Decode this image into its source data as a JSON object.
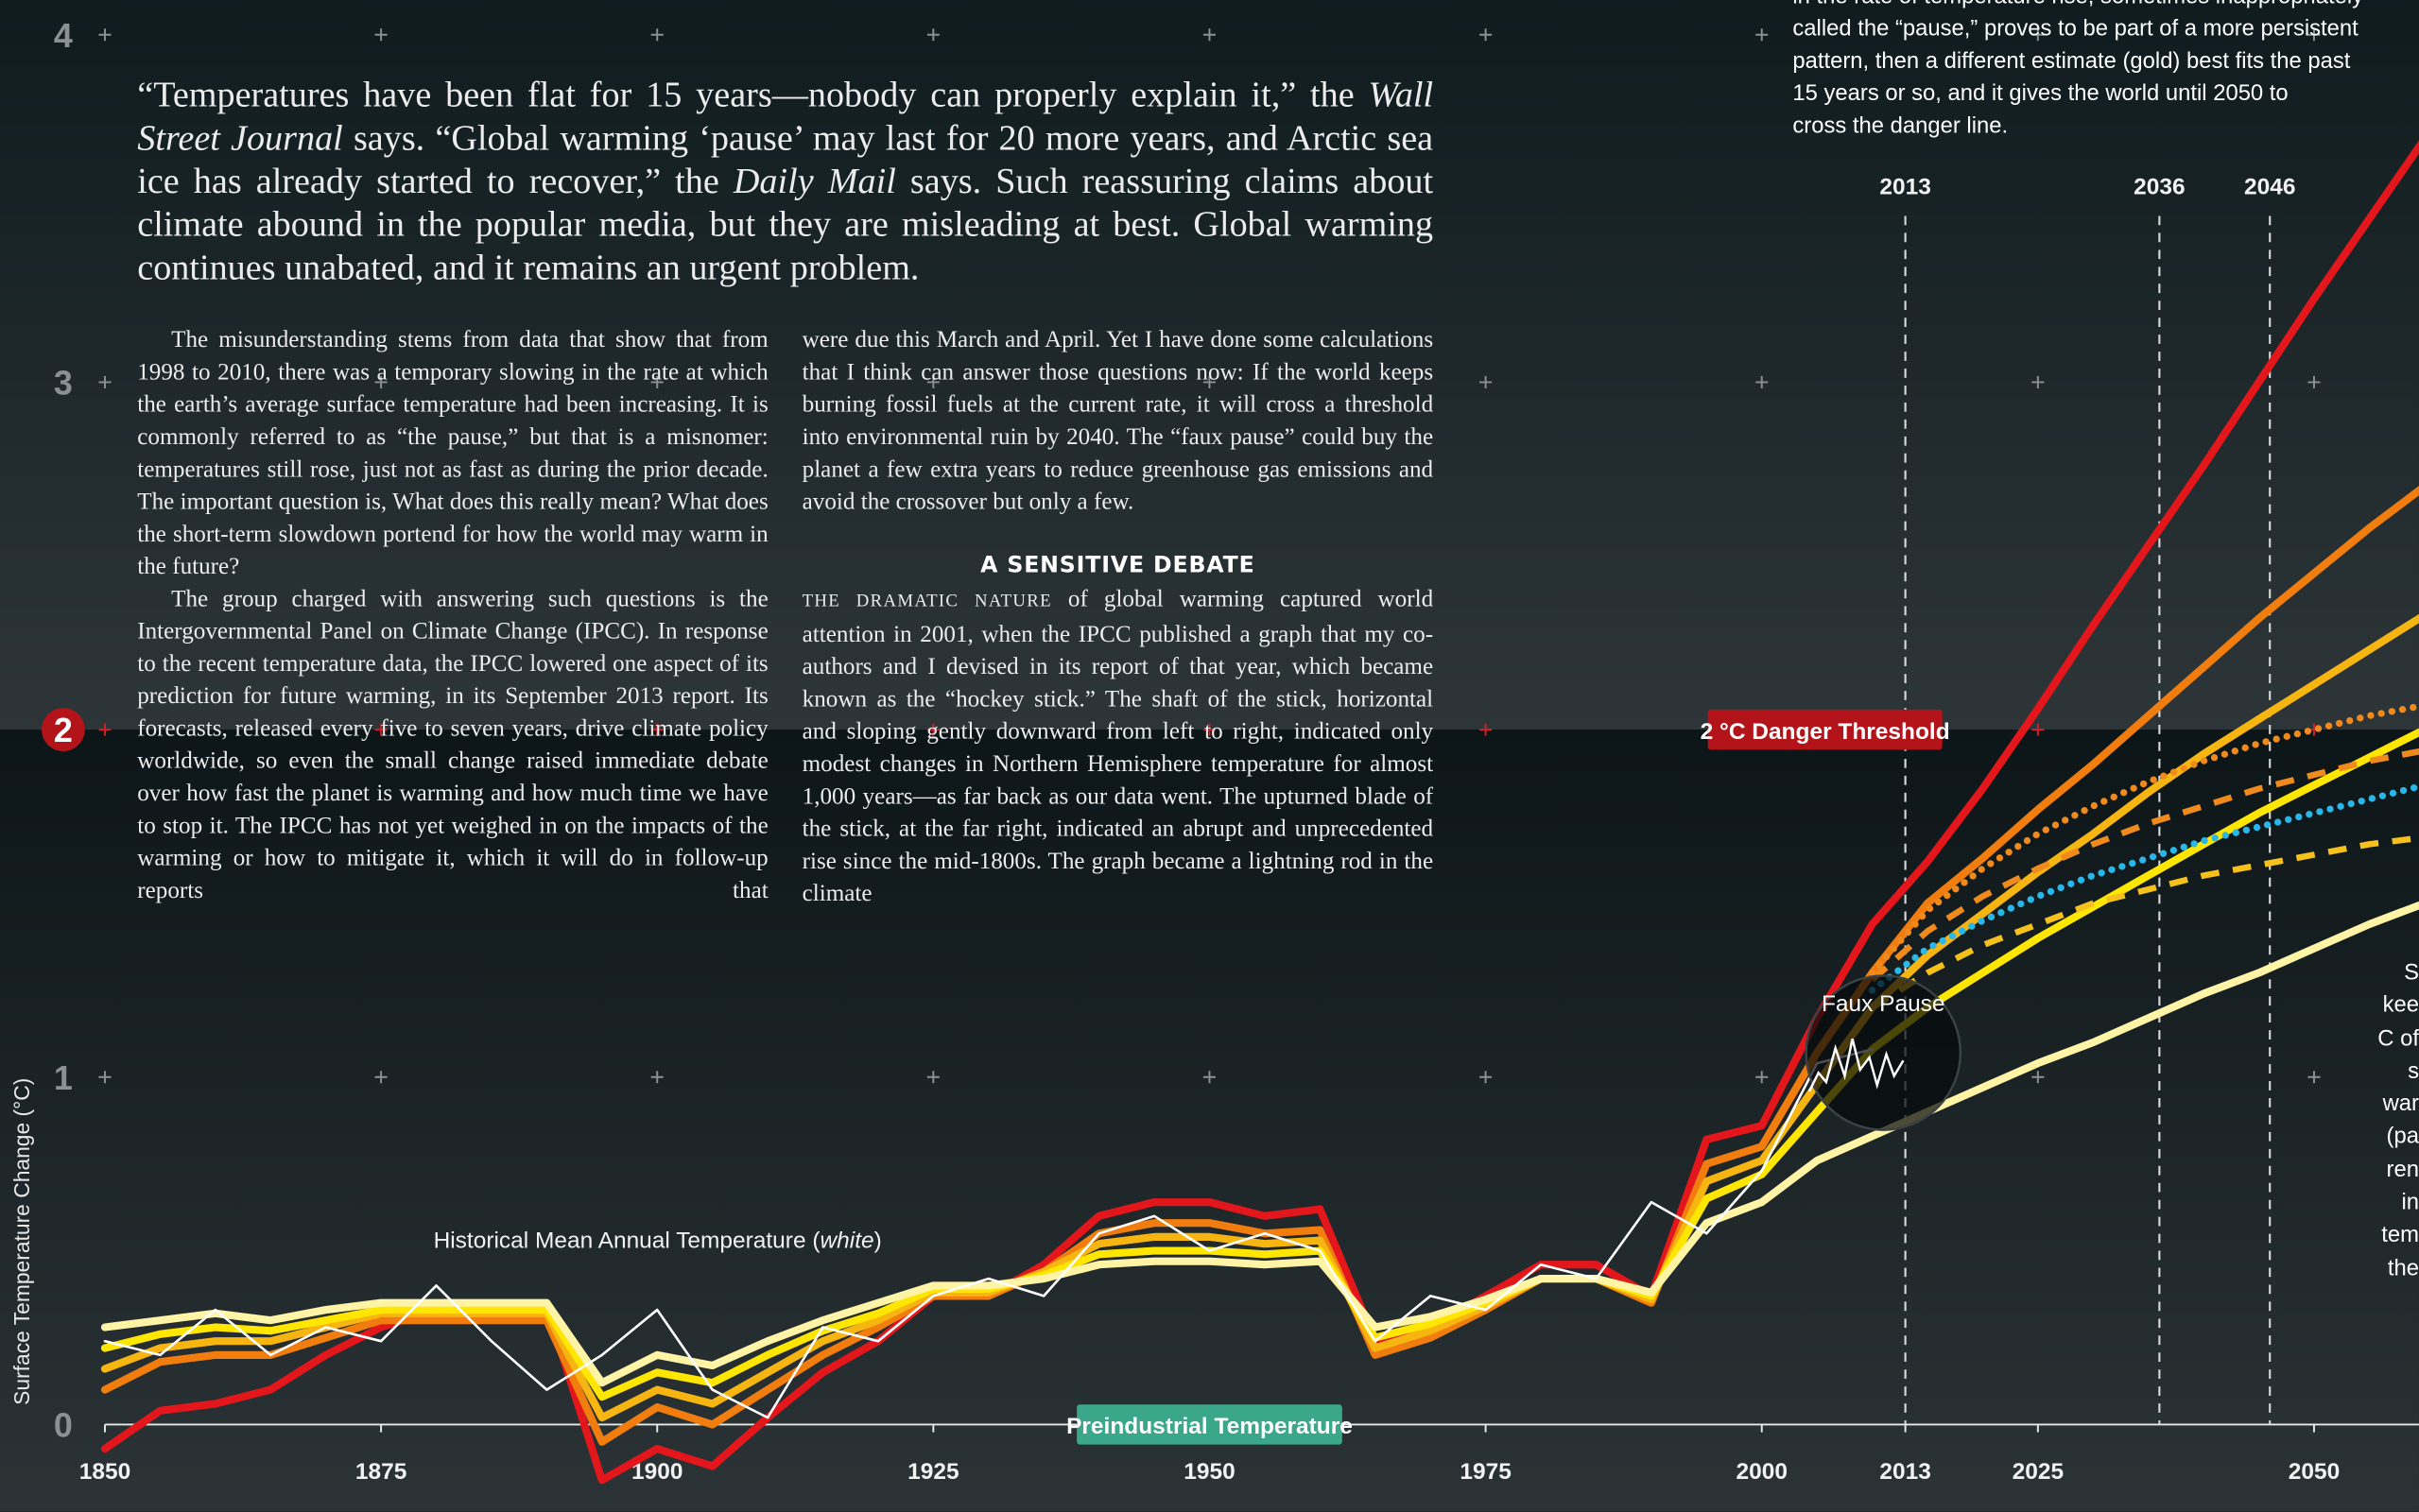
{
  "chart_data": {
    "type": "line",
    "y_label": "Surface Temperature Change (°C)",
    "x": [
      1850,
      1855,
      1860,
      1865,
      1870,
      1875,
      1880,
      1885,
      1890,
      1895,
      1900,
      1905,
      1910,
      1915,
      1920,
      1925,
      1930,
      1935,
      1940,
      1945,
      1950,
      1955,
      1960,
      1965,
      1970,
      1975,
      1980,
      1985,
      1990,
      1995,
      2000,
      2005,
      2010,
      2015,
      2020,
      2025,
      2030,
      2035,
      2040,
      2045,
      2050,
      2055,
      2060
    ],
    "xlim": [
      1850,
      2059.5
    ],
    "xticks": [
      1850,
      1875,
      1900,
      1925,
      1950,
      1975,
      2000,
      2013,
      2025,
      2050
    ],
    "ylim": [
      -0.25,
      4.1
    ],
    "yticks": [
      0,
      1,
      2,
      3,
      4
    ],
    "grid": "plus",
    "xmarkers": [
      2013,
      2036,
      2046
    ],
    "threshold": {
      "value": 2,
      "label": "2 °C Danger Threshold"
    },
    "baseline": {
      "value": 0,
      "label": "Preindustrial Temperature"
    },
    "callout": {
      "label": "Faux Pause",
      "x": 2011,
      "y": 1.07
    },
    "series": [
      {
        "color": "#e3171b",
        "style": "solid",
        "values": [
          -0.07,
          0.04,
          0.06,
          0.1,
          0.2,
          0.28,
          0.33,
          0.34,
          0.34,
          -0.16,
          -0.07,
          -0.12,
          0.02,
          0.15,
          0.24,
          0.37,
          0.37,
          0.46,
          0.6,
          0.64,
          0.64,
          0.6,
          0.62,
          0.24,
          0.28,
          0.37,
          0.46,
          0.46,
          0.37,
          0.82,
          0.86,
          1.17,
          1.44,
          1.62,
          1.83,
          2.06,
          2.3,
          2.53,
          2.76,
          3.0,
          3.24,
          3.47,
          3.7
        ]
      },
      {
        "color": "#f07d0e",
        "style": "solid",
        "values": [
          0.1,
          0.18,
          0.2,
          0.2,
          0.25,
          0.3,
          0.3,
          0.3,
          0.3,
          -0.05,
          0.05,
          0.0,
          0.1,
          0.2,
          0.28,
          0.37,
          0.37,
          0.44,
          0.55,
          0.58,
          0.58,
          0.55,
          0.56,
          0.2,
          0.25,
          0.33,
          0.42,
          0.42,
          0.35,
          0.75,
          0.8,
          1.07,
          1.3,
          1.5,
          1.63,
          1.77,
          1.9,
          2.04,
          2.18,
          2.32,
          2.45,
          2.58,
          2.7
        ]
      },
      {
        "color": "#f6b510",
        "style": "solid",
        "values": [
          0.16,
          0.22,
          0.24,
          0.24,
          0.28,
          0.32,
          0.32,
          0.32,
          0.32,
          0.02,
          0.1,
          0.06,
          0.15,
          0.24,
          0.3,
          0.38,
          0.38,
          0.44,
          0.52,
          0.54,
          0.54,
          0.52,
          0.53,
          0.22,
          0.27,
          0.34,
          0.42,
          0.42,
          0.36,
          0.7,
          0.76,
          0.98,
          1.2,
          1.35,
          1.47,
          1.59,
          1.7,
          1.82,
          1.93,
          2.03,
          2.13,
          2.23,
          2.33
        ]
      },
      {
        "color": "#ffe600",
        "style": "solid",
        "values": [
          0.22,
          0.26,
          0.28,
          0.27,
          0.3,
          0.33,
          0.33,
          0.33,
          0.33,
          0.08,
          0.15,
          0.12,
          0.2,
          0.27,
          0.32,
          0.39,
          0.39,
          0.43,
          0.49,
          0.5,
          0.5,
          0.49,
          0.5,
          0.25,
          0.29,
          0.35,
          0.42,
          0.42,
          0.37,
          0.65,
          0.72,
          0.9,
          1.08,
          1.2,
          1.3,
          1.4,
          1.49,
          1.58,
          1.67,
          1.76,
          1.84,
          1.92,
          2.0
        ]
      },
      {
        "color": "#fff3a6",
        "style": "solid",
        "values": [
          0.28,
          0.3,
          0.32,
          0.3,
          0.33,
          0.35,
          0.35,
          0.35,
          0.35,
          0.12,
          0.2,
          0.17,
          0.24,
          0.3,
          0.35,
          0.4,
          0.4,
          0.42,
          0.46,
          0.47,
          0.47,
          0.46,
          0.47,
          0.28,
          0.31,
          0.36,
          0.42,
          0.42,
          0.38,
          0.58,
          0.64,
          0.76,
          0.83,
          0.9,
          0.97,
          1.04,
          1.1,
          1.17,
          1.24,
          1.3,
          1.37,
          1.44,
          1.5
        ]
      },
      {
        "color": "#29b6e8",
        "style": "dotted",
        "values": [
          null,
          null,
          null,
          null,
          null,
          null,
          null,
          null,
          null,
          null,
          null,
          null,
          null,
          null,
          null,
          null,
          null,
          null,
          null,
          null,
          null,
          null,
          null,
          null,
          null,
          null,
          null,
          null,
          null,
          null,
          null,
          null,
          1.25,
          1.37,
          1.45,
          1.52,
          1.58,
          1.63,
          1.68,
          1.72,
          1.76,
          1.8,
          1.84
        ]
      },
      {
        "color": "#f08a1c",
        "style": "dotted",
        "values": [
          null,
          null,
          null,
          null,
          null,
          null,
          null,
          null,
          null,
          null,
          null,
          null,
          null,
          null,
          null,
          null,
          null,
          null,
          null,
          null,
          null,
          null,
          null,
          null,
          null,
          null,
          null,
          null,
          null,
          null,
          null,
          null,
          1.3,
          1.48,
          1.6,
          1.7,
          1.78,
          1.85,
          1.91,
          1.96,
          2.0,
          2.04,
          2.07
        ]
      },
      {
        "color": "#f08a1c",
        "style": "dashed",
        "values": [
          null,
          null,
          null,
          null,
          null,
          null,
          null,
          null,
          null,
          null,
          null,
          null,
          null,
          null,
          null,
          null,
          null,
          null,
          null,
          null,
          null,
          null,
          null,
          null,
          null,
          null,
          null,
          null,
          null,
          null,
          null,
          null,
          1.28,
          1.42,
          1.52,
          1.6,
          1.67,
          1.73,
          1.78,
          1.83,
          1.87,
          1.91,
          1.94
        ]
      },
      {
        "color": "#f6c11a",
        "style": "dashed",
        "values": [
          null,
          null,
          null,
          null,
          null,
          null,
          null,
          null,
          null,
          null,
          null,
          null,
          null,
          null,
          null,
          null,
          null,
          null,
          null,
          null,
          null,
          null,
          null,
          null,
          null,
          null,
          null,
          null,
          null,
          null,
          null,
          null,
          1.2,
          1.3,
          1.38,
          1.44,
          1.5,
          1.54,
          1.58,
          1.61,
          1.64,
          1.67,
          1.69
        ]
      },
      {
        "name": "Historical Mean Annual Temperature",
        "name_note": "white",
        "color": "#ffffff",
        "style": "thin",
        "values": [
          0.24,
          0.2,
          0.33,
          0.2,
          0.28,
          0.24,
          0.4,
          0.24,
          0.1,
          0.2,
          0.33,
          0.1,
          0.02,
          0.28,
          0.24,
          0.37,
          0.42,
          0.37,
          0.55,
          0.6,
          0.5,
          0.55,
          0.5,
          0.24,
          0.37,
          0.33,
          0.46,
          0.42,
          0.64,
          0.55,
          0.73,
          1.04,
          1.08,
          null,
          null,
          null,
          null,
          null,
          null,
          null,
          null,
          null,
          null
        ]
      }
    ]
  },
  "note_lines": [
    "in the rate of temperature rise, sometimes inappropriately",
    "called the “pause,” proves to be part of a more persistent",
    "pattern, then a different estimate (gold) best fits the past",
    "15 years or so, and it gives the world until 2050 to",
    "cross the danger line."
  ],
  "side_fragments": [
    "S",
    "kee",
    "C of",
    "s",
    "war",
    "(pa",
    "ren",
    "in",
    "tem",
    "the"
  ],
  "article": {
    "lede": [
      {
        "text": "“Temperatures have been flat for 15 years—nobody can properly explain it,” the "
      },
      {
        "text": "Wall Street Journal",
        "italic": true
      },
      {
        "text": " says. “Global warming ‘pause’ may last for 20 more years, and Arctic sea ice has already started to recover,” the "
      },
      {
        "text": "Daily Mail",
        "italic": true
      },
      {
        "text": " says. Such reassuring claims about climate abound in the popular media, but they are misleading at best. Global warming continues unabated, and it remains an urgent problem."
      }
    ],
    "col1": [
      "The misunderstanding stems from data that show that from 1998 to 2010, there was a temporary slowing in the rate at which the earth’s average surface temperature had been increasing. It is commonly referred to as “the pause,” but that is a misnomer: temperatures still rose, just not as fast as during the prior decade. The important question is, What does this really mean? What does the short-term slowdown portend for how the world may warm in the future?",
      "The group charged with answering such questions is the Intergovernmental Panel on Climate Change (IPCC). In response to the recent temperature data, the IPCC lowered one aspect of its prediction for future warming, in its September 2013 report. Its forecasts, released every five to seven years, drive climate policy worldwide, so even the small change raised immediate debate over how fast the planet is warming and how much time we have to stop it. The IPCC has not yet weighed in on the impacts of the warming or how to mitigate it, which it will do in follow-up reports that"
    ],
    "col2_top": "were due this March and April. Yet I have done some calculations that I think can answer those questions now: If the world keeps burning fossil fuels at the current rate, it will cross a threshold into environmental ruin by 2040. The “faux pause” could buy the planet a few extra years to reduce greenhouse gas emissions and avoid the crossover but only a few.",
    "heading": "A SENSITIVE DEBATE",
    "lead_in": "THE DRAMATIC NATURE",
    "col2_body": " of global warming captured world attention in 2001, when the IPCC published a graph that my co-authors and I devised in its report of that year, which became known as the “hockey stick.” The shaft of the stick, horizontal and sloping gently downward from left to right, indicated only modest changes in Northern Hemisphere temperature for almost 1,000 years—as far back as our data went. The upturned blade of the stick, at the far right, indicated an abrupt and unprecedented rise since the mid-1800s. The graph became a lightning rod in the climate"
  }
}
